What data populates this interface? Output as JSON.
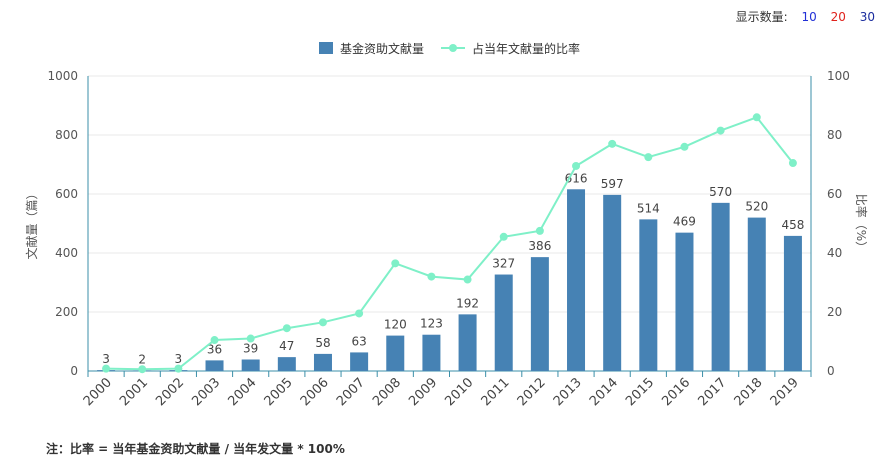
{
  "display_count": {
    "label": "显示数量:",
    "options": [
      "10",
      "20",
      "30"
    ]
  },
  "chart_data": {
    "type": "bar+line",
    "categories": [
      "2000",
      "2001",
      "2002",
      "2003",
      "2004",
      "2005",
      "2006",
      "2007",
      "2008",
      "2009",
      "2010",
      "2011",
      "2012",
      "2013",
      "2014",
      "2015",
      "2016",
      "2017",
      "2018",
      "2019"
    ],
    "series": [
      {
        "name": "基金资助文献量",
        "type": "bar",
        "axis": "left",
        "color": "#4682b4",
        "values": [
          3,
          2,
          3,
          36,
          39,
          47,
          58,
          63,
          120,
          123,
          192,
          327,
          386,
          616,
          597,
          514,
          469,
          570,
          520,
          458
        ]
      },
      {
        "name": "占当年文献量的比率",
        "type": "line",
        "axis": "right",
        "color": "#7ff0c8",
        "values": [
          0.8,
          0.6,
          0.8,
          10.5,
          11,
          14.5,
          16.5,
          19.5,
          36.5,
          32,
          31,
          45.5,
          47.5,
          69.5,
          77,
          72.5,
          76,
          81.5,
          86,
          70.5
        ]
      }
    ],
    "ylabel": "文献量（篇）",
    "y2label": "比率（%）",
    "ylim": [
      0,
      1000
    ],
    "yticks": [
      "0",
      "200",
      "400",
      "600",
      "800",
      "1000"
    ],
    "y2lim": [
      0,
      100
    ],
    "y2ticks": [
      "0",
      "20",
      "40",
      "60",
      "80",
      "100"
    ],
    "legend_position": "top-center",
    "grid": true
  },
  "note": "注：比率 = 当年基金资助文献量 / 当年发文量 * 100%"
}
